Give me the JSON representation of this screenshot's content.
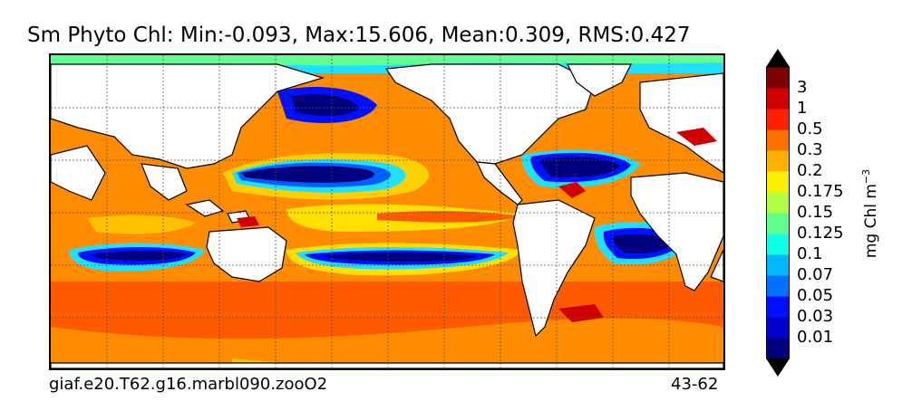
{
  "title": "Sm Phyto Chl: Min:-0.093, Max:15.606, Mean:0.309, RMS:0.427",
  "footer": {
    "case_name": "giaf.e20.T62.g16.marbl090.zooO2",
    "years": "43-62"
  },
  "colorbar": {
    "units_label": "mg Chl m",
    "units_exponent": "−3",
    "levels": [
      "0.01",
      "0.03",
      "0.05",
      "0.07",
      "0.1",
      "0.125",
      "0.15",
      "0.175",
      "0.2",
      "0.3",
      "0.5",
      "1",
      "3"
    ],
    "colors": [
      "#00007f",
      "#0000c8",
      "#0010ff",
      "#0070ff",
      "#00b8ff",
      "#10ffe8",
      "#60ff90",
      "#b0ff40",
      "#f8f000",
      "#ffb000",
      "#ff7000",
      "#ff2000",
      "#d00000",
      "#7f0000"
    ],
    "extend_low_color": "#000000",
    "extend_high_color": "#000000"
  }
}
